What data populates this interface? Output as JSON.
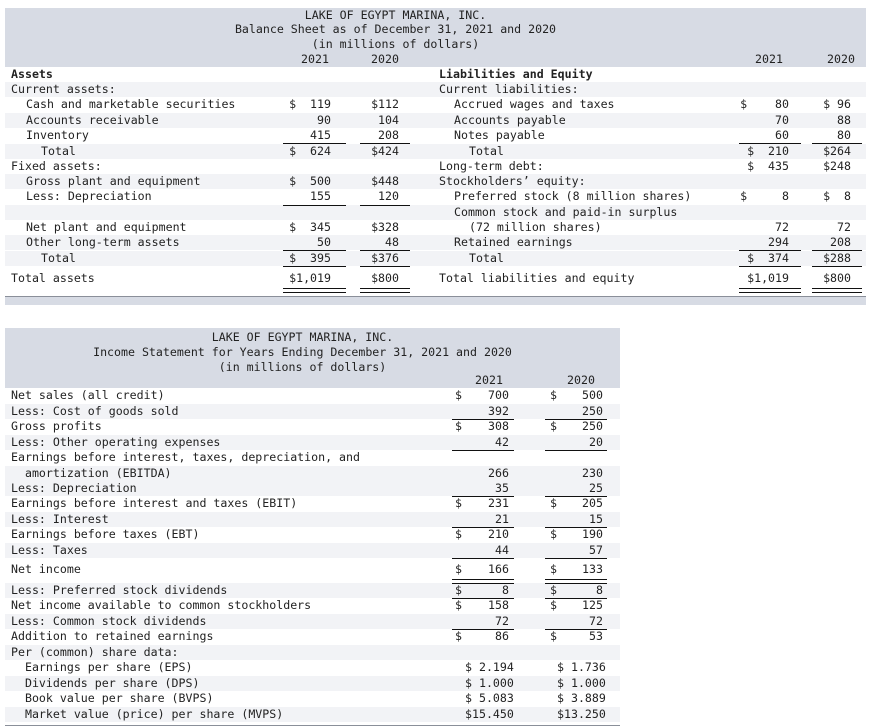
{
  "balance_sheet": {
    "company": "LAKE OF EGYPT MARINA, INC.",
    "title": "Balance Sheet as of December 31, 2021 and 2020",
    "units": "(in millions of dollars)",
    "years": [
      "2021",
      "2020"
    ],
    "assets": {
      "heading": "Assets",
      "current_heading": "Current assets:",
      "rows": [
        {
          "label": "Cash and marketable securities",
          "y2021": "$  119",
          "y2020": "$112"
        },
        {
          "label": "Accounts receivable",
          "y2021": "90",
          "y2020": "104"
        },
        {
          "label": "Inventory",
          "y2021": "415",
          "y2020": "208"
        },
        {
          "label": "Total",
          "y2021": "$  624",
          "y2020": "$424"
        }
      ],
      "fixed_heading": "Fixed assets:",
      "fixed_rows": [
        {
          "label": "Gross plant and equipment",
          "y2021": "$  500",
          "y2020": "$448"
        },
        {
          "label": "Less: Depreciation",
          "y2021": "155",
          "y2020": "120"
        },
        {
          "label": "Net plant and equipment",
          "y2021": "$  345",
          "y2020": "$328"
        },
        {
          "label": "Other long-term assets",
          "y2021": "50",
          "y2020": "48"
        },
        {
          "label": "Total",
          "y2021": "$  395",
          "y2020": "$376"
        }
      ],
      "total_label": "Total assets",
      "total_2021": "$1,019",
      "total_2020": "$800"
    },
    "liabilities": {
      "heading": "Liabilities and Equity",
      "current_heading": "Current liabilities:",
      "rows": [
        {
          "label": "Accrued wages and taxes",
          "y2021": "$    80",
          "y2020": "$ 96"
        },
        {
          "label": "Accounts payable",
          "y2021": "70",
          "y2020": "88"
        },
        {
          "label": "Notes payable",
          "y2021": "60",
          "y2020": "80"
        },
        {
          "label": "Total",
          "y2021": "$  210",
          "y2020": "$264"
        }
      ],
      "ltd_label": "Long-term debt:",
      "ltd_2021": "$  435",
      "ltd_2020": "$248",
      "equity_heading": "Stockholders’ equity:",
      "equity_rows": [
        {
          "label": "Preferred stock (8 million shares)",
          "y2021": "$     8",
          "y2020": "$  8"
        },
        {
          "label": "Common stock and paid-in surplus",
          "y2021": "",
          "y2020": ""
        },
        {
          "label": "(72 million shares)",
          "y2021": "72",
          "y2020": "72"
        },
        {
          "label": "Retained earnings",
          "y2021": "294",
          "y2020": "208"
        },
        {
          "label": "Total",
          "y2021": "$  374",
          "y2020": "$288"
        }
      ],
      "total_label": "Total liabilities and equity",
      "total_2021": "$1,019",
      "total_2020": "$800"
    }
  },
  "income_statement": {
    "company": "LAKE OF EGYPT MARINA, INC.",
    "title": "Income Statement for Years Ending December 31, 2021 and 2020",
    "units": "(in millions of dollars)",
    "years": [
      "2021",
      "2020"
    ],
    "rows": [
      {
        "label": "Net sales (all credit)",
        "d2021": "$",
        "v2021": "700",
        "d2020": "$",
        "v2020": "500"
      },
      {
        "label": "Less: Cost of goods sold",
        "d2021": "",
        "v2021": "392",
        "d2020": "",
        "v2020": "250"
      },
      {
        "label": "Gross profits",
        "d2021": "$",
        "v2021": "308",
        "d2020": "$",
        "v2020": "250"
      },
      {
        "label": "Less: Other operating expenses",
        "d2021": "",
        "v2021": "42",
        "d2020": "",
        "v2020": "20"
      },
      {
        "label": "Earnings before interest, taxes, depreciation, and",
        "d2021": "",
        "v2021": "",
        "d2020": "",
        "v2020": ""
      },
      {
        "label": "  amortization (EBITDA)",
        "d2021": "",
        "v2021": "266",
        "d2020": "",
        "v2020": "230"
      },
      {
        "label": "Less: Depreciation",
        "d2021": "",
        "v2021": "35",
        "d2020": "",
        "v2020": "25"
      },
      {
        "label": "Earnings before interest and taxes (EBIT)",
        "d2021": "$",
        "v2021": "231",
        "d2020": "$",
        "v2020": "205"
      },
      {
        "label": "Less: Interest",
        "d2021": "",
        "v2021": "21",
        "d2020": "",
        "v2020": "15"
      },
      {
        "label": "Earnings before taxes (EBT)",
        "d2021": "$",
        "v2021": "210",
        "d2020": "$",
        "v2020": "190"
      },
      {
        "label": "Less: Taxes",
        "d2021": "",
        "v2021": "44",
        "d2020": "",
        "v2020": "57"
      },
      {
        "label": "Net income",
        "d2021": "$",
        "v2021": "166",
        "d2020": "$",
        "v2020": "133"
      },
      {
        "label": "Less: Preferred stock dividends",
        "d2021": "$",
        "v2021": "8",
        "d2020": "$",
        "v2020": "8"
      },
      {
        "label": "Net income available to common stockholders",
        "d2021": "$",
        "v2021": "158",
        "d2020": "$",
        "v2020": "125"
      },
      {
        "label": "Less: Common stock dividends",
        "d2021": "",
        "v2021": "72",
        "d2020": "",
        "v2020": "72"
      },
      {
        "label": "Addition to retained earnings",
        "d2021": "$",
        "v2021": "86",
        "d2020": "$",
        "v2020": "53"
      },
      {
        "label": "Per (common) share data:",
        "d2021": "",
        "v2021": "",
        "d2020": "",
        "v2020": ""
      },
      {
        "label": "  Earnings per share (EPS)",
        "d2021": "",
        "v2021": "$ 2.194",
        "d2020": "",
        "v2020": "$ 1.736"
      },
      {
        "label": "  Dividends per share (DPS)",
        "d2021": "",
        "v2021": "$ 1.000",
        "d2020": "",
        "v2020": "$ 1.000"
      },
      {
        "label": "  Book value per share (BVPS)",
        "d2021": "",
        "v2021": "$ 5.083",
        "d2020": "",
        "v2020": "$ 3.889"
      },
      {
        "label": "  Market value (price) per share (MVPS)",
        "d2021": "",
        "v2021": "$15.450",
        "d2020": "",
        "v2020": "$13.250"
      }
    ]
  }
}
